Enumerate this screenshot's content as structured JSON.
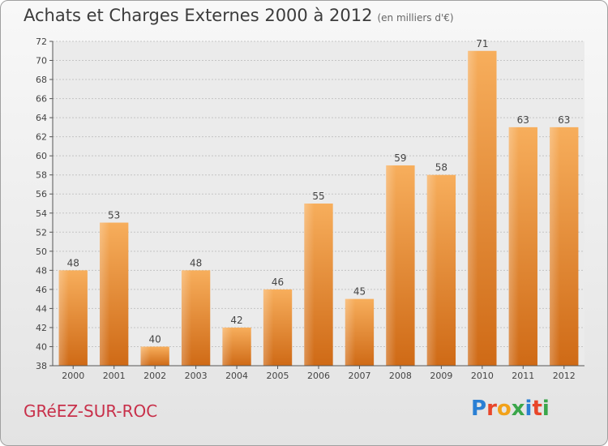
{
  "title": "Achats et Charges Externes 2000 à 2012",
  "subtitle": "(en milliers d'€)",
  "place_name": "GRéEZ-SUR-ROC",
  "logo": {
    "letters": [
      "P",
      "r",
      "o",
      "x",
      "i",
      "t",
      "i"
    ],
    "colors": [
      "#2a7fd4",
      "#e8462a",
      "#f2a21a",
      "#3aa64a",
      "#2a7fd4",
      "#e8462a",
      "#3aa64a"
    ]
  },
  "colors": {
    "bar": "#f0922e",
    "bar_dark": "#cf6a16",
    "bar_light": "#f7ae5c"
  },
  "chart_data": {
    "type": "bar",
    "categories": [
      "2000",
      "2001",
      "2002",
      "2003",
      "2004",
      "2005",
      "2006",
      "2007",
      "2008",
      "2009",
      "2010",
      "2011",
      "2012"
    ],
    "values": [
      48,
      53,
      40,
      48,
      42,
      46,
      55,
      45,
      59,
      58,
      71,
      63,
      63
    ],
    "ylim": [
      38,
      72
    ],
    "yticks": [
      38,
      40,
      42,
      44,
      46,
      48,
      50,
      52,
      54,
      56,
      58,
      60,
      62,
      64,
      66,
      68,
      70,
      72
    ],
    "grid": true
  }
}
